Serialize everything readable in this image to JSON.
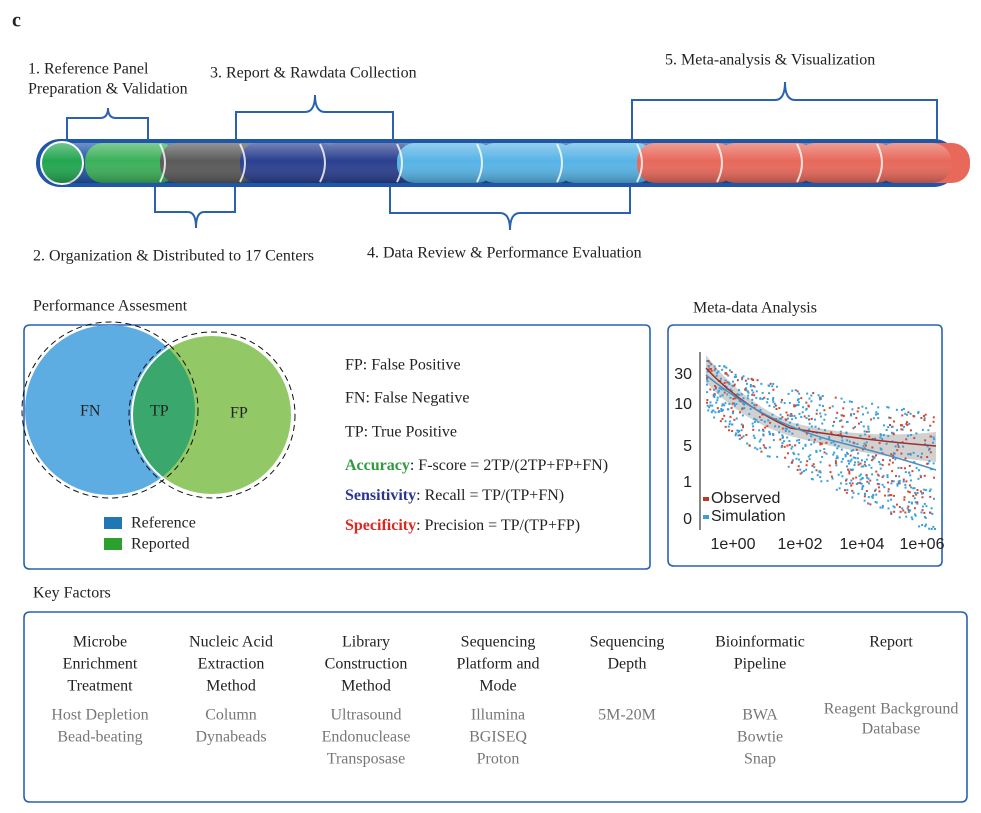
{
  "panel_label": "c",
  "pipeline": {
    "step1": [
      "1.  Reference Panel",
      "Preparation & Validation"
    ],
    "step2": "2.  Organization & Distributed to 17 Centers",
    "step3": "3. Report & Rawdata Collection",
    "step4": "4. Data Review & Performance Evaluation",
    "step5": "5. Meta-analysis & Visualization"
  },
  "performance": {
    "title": "Performance Assesment",
    "venn": {
      "left": "FN",
      "middle": "TP",
      "right": "FP"
    },
    "legend": [
      "Reference",
      "Reported"
    ],
    "definitions": [
      "FP: False Positive",
      "FN: False Negative",
      "TP: True Positive"
    ],
    "metrics": [
      {
        "label": "Accuracy",
        "text": ": F-score = 2TP/(2TP+FP+FN)"
      },
      {
        "label": "Sensitivity",
        "text": ": Recall = TP/(TP+FN)"
      },
      {
        "label": "Specificity",
        "text": ": Precision = TP/(TP+FP)"
      }
    ]
  },
  "meta": {
    "title": "Meta-data Analysis",
    "yticks": [
      "30",
      "10",
      "5",
      "1",
      "0"
    ],
    "xticks": [
      "1e+00",
      "1e+02",
      "1e+04",
      "1e+06"
    ],
    "legend": [
      "Observed",
      "Simulation"
    ]
  },
  "key_factors": {
    "title": "Key Factors",
    "columns": [
      {
        "heading": [
          "Microbe",
          "Enrichment",
          "Treatment"
        ],
        "items": [
          "Host Depletion",
          "Bead-beating"
        ]
      },
      {
        "heading": [
          "Nucleic Acid",
          "Extraction",
          "Method"
        ],
        "items": [
          "Column",
          "Dynabeads"
        ]
      },
      {
        "heading": [
          "Library",
          "Construction",
          "Method"
        ],
        "items": [
          "Ultrasound",
          "Endonuclease",
          "Transposase"
        ]
      },
      {
        "heading": [
          "Sequencing",
          "Platform and",
          "Mode"
        ],
        "items": [
          "Illumina",
          "BGISEQ",
          "Proton"
        ]
      },
      {
        "heading": [
          "Sequencing",
          "Depth"
        ],
        "items": [
          "5M-20M"
        ]
      },
      {
        "heading": [
          "Bioinformatic",
          "Pipeline"
        ],
        "items": [
          "BWA",
          "Bowtie",
          "Snap"
        ]
      },
      {
        "heading": [
          "Report"
        ],
        "items": [
          "Reagent Background",
          "Database"
        ]
      }
    ]
  }
}
